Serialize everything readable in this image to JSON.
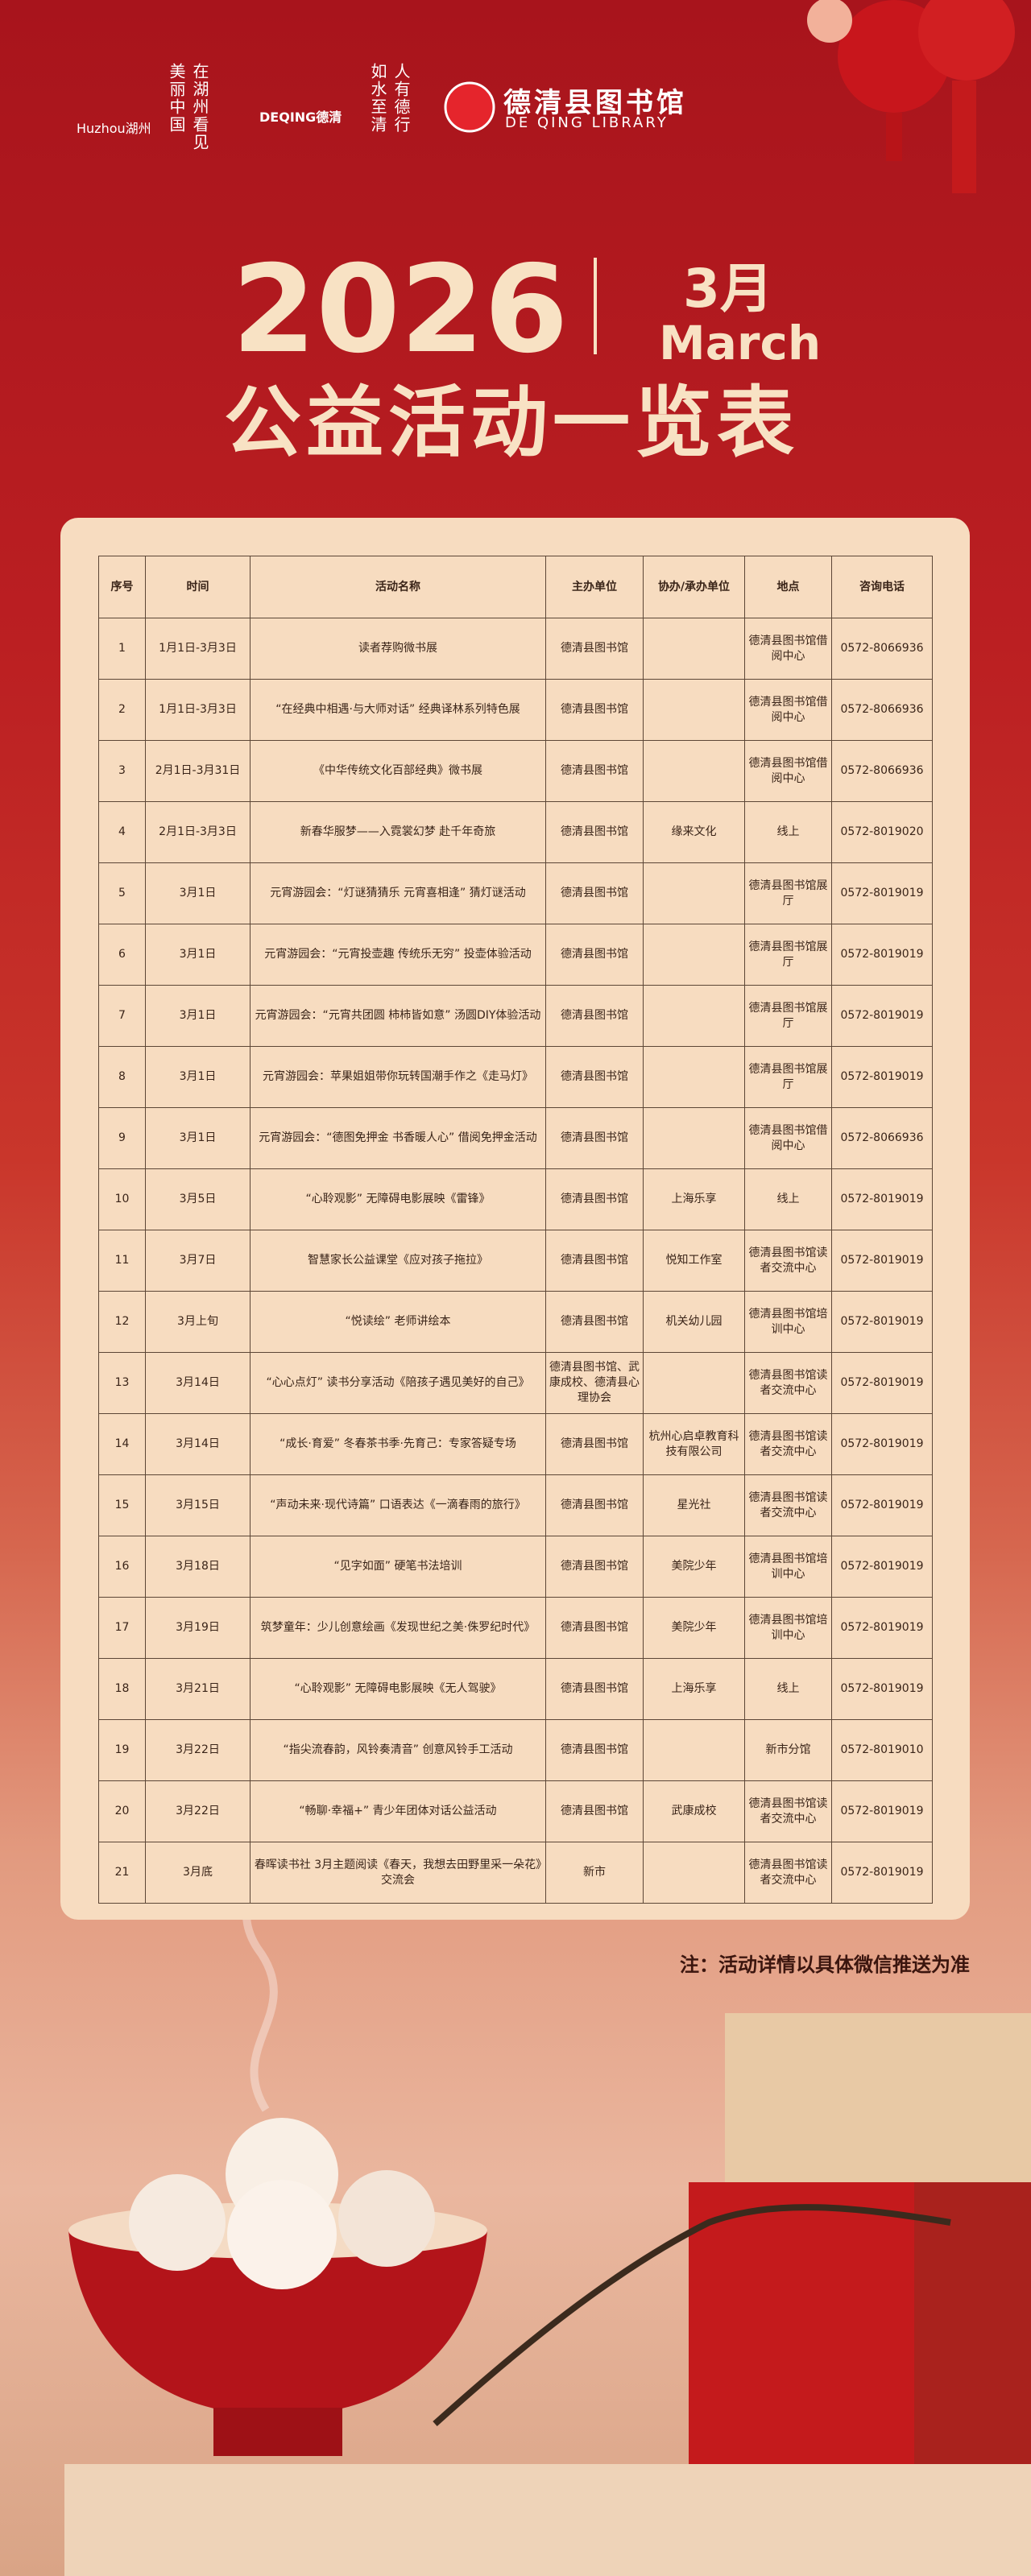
{
  "header": {
    "logos": [
      {
        "name": "Huzhou湖州",
        "slogan": "在湖州看见美丽中国"
      },
      {
        "name": "DEQING德清",
        "slogan": "人有德行 如水至清"
      },
      {
        "name": "德清县图书馆",
        "subtitle": "DE QING LIBRARY"
      }
    ]
  },
  "title": {
    "year": "2026",
    "month": "3月",
    "month_en": "March",
    "heading": "公益活动一览表"
  },
  "table": {
    "columns": [
      "序号",
      "时间",
      "活动名称",
      "主办单位",
      "协办/承办单位",
      "地点",
      "咨询电话"
    ],
    "rows": [
      [
        "1",
        "1月1日-3月3日",
        "读者荐购微书展",
        "德清县图书馆",
        null,
        "德清县图书馆借阅中心",
        "0572-8066936"
      ],
      [
        "2",
        "1月1日-3月3日",
        "“在经典中相遇·与大师对话” 经典译林系列特色展",
        "德清县图书馆",
        null,
        "德清县图书馆借阅中心",
        "0572-8066936"
      ],
      [
        "3",
        "2月1日-3月31日",
        "《中华传统文化百部经典》微书展",
        "德清县图书馆",
        null,
        "德清县图书馆借阅中心",
        "0572-8066936"
      ],
      [
        "4",
        "2月1日-3月3日",
        "新春华服梦——入霓裳幻梦 赴千年奇旅",
        "德清县图书馆",
        "缘来文化",
        "线上",
        "0572-8019020"
      ],
      [
        "5",
        "3月1日",
        "元宵游园会：“灯谜猜猜乐 元宵喜相逢” 猜灯谜活动",
        "德清县图书馆",
        null,
        "德清县图书馆展厅",
        "0572-8019019"
      ],
      [
        "6",
        "3月1日",
        "元宵游园会：“元宵投壶趣 传统乐无穷” 投壶体验活动",
        "德清县图书馆",
        null,
        "德清县图书馆展厅",
        "0572-8019019"
      ],
      [
        "7",
        "3月1日",
        "元宵游园会：“元宵共团圆 柿柿皆如意” 汤圆DIY体验活动",
        "德清县图书馆",
        null,
        "德清县图书馆展厅",
        "0572-8019019"
      ],
      [
        "8",
        "3月1日",
        "元宵游园会：苹果姐姐带你玩转国潮手作之《走马灯》",
        "德清县图书馆",
        null,
        "德清县图书馆展厅",
        "0572-8019019"
      ],
      [
        "9",
        "3月1日",
        "元宵游园会：“德图免押金 书香暖人心” 借阅免押金活动",
        "德清县图书馆",
        null,
        "德清县图书馆借阅中心",
        "0572-8066936"
      ],
      [
        "10",
        "3月5日",
        "“心聆观影” 无障碍电影展映《雷锋》",
        "德清县图书馆",
        "上海乐享",
        "线上",
        "0572-8019019"
      ],
      [
        "11",
        "3月7日",
        "智慧家长公益课堂《应对孩子拖拉》",
        "德清县图书馆",
        "悦知工作室",
        "德清县图书馆读者交流中心",
        "0572-8019019"
      ],
      [
        "12",
        "3月上旬",
        "“悦读绘” 老师讲绘本",
        "德清县图书馆",
        "机关幼儿园",
        "德清县图书馆培训中心",
        "0572-8019019"
      ],
      [
        "13",
        "3月14日",
        "“心心点灯” 读书分享活动《陪孩子遇见美好的自己》",
        "德清县图书馆、武康成校、德清县心理协会",
        null,
        "德清县图书馆读者交流中心",
        "0572-8019019"
      ],
      [
        "14",
        "3月14日",
        "“成长·育爱” 冬春茶书季·先育己：专家答疑专场",
        "德清县图书馆",
        "杭州心启卓教育科技有限公司",
        "德清县图书馆读者交流中心",
        "0572-8019019"
      ],
      [
        "15",
        "3月15日",
        "“声动未来·现代诗篇” 口语表达《一滴春雨的旅行》",
        "德清县图书馆",
        "星光社",
        "德清县图书馆读者交流中心",
        "0572-8019019"
      ],
      [
        "16",
        "3月18日",
        "“见字如面” 硬笔书法培训",
        "德清县图书馆",
        "美院少年",
        "德清县图书馆培训中心",
        "0572-8019019"
      ],
      [
        "17",
        "3月19日",
        "筑梦童年：少儿创意绘画《发现世纪之美·侏罗纪时代》",
        "德清县图书馆",
        "美院少年",
        "德清县图书馆培训中心",
        "0572-8019019"
      ],
      [
        "18",
        "3月21日",
        "“心聆观影” 无障碍电影展映《无人驾驶》",
        "德清县图书馆",
        "上海乐享",
        "线上",
        "0572-8019019"
      ],
      [
        "19",
        "3月22日",
        "“指尖流春韵，风铃奏清音” 创意风铃手工活动",
        "德清县图书馆",
        null,
        "新市分馆",
        "0572-8019010"
      ],
      [
        "20",
        "3月22日",
        "“畅聊·幸福+” 青少年团体对话公益活动",
        "德清县图书馆",
        "武康成校",
        "德清县图书馆读者交流中心",
        "0572-8019019"
      ],
      [
        "21",
        "3月底",
        "春晖读书社 3月主题阅读《春天，我想去田野里采一朵花》交流会",
        "新市",
        null,
        "德清县图书馆读者交流中心",
        "0572-8019019"
      ]
    ]
  },
  "note": "注：活动详情以具体微信推送为准"
}
